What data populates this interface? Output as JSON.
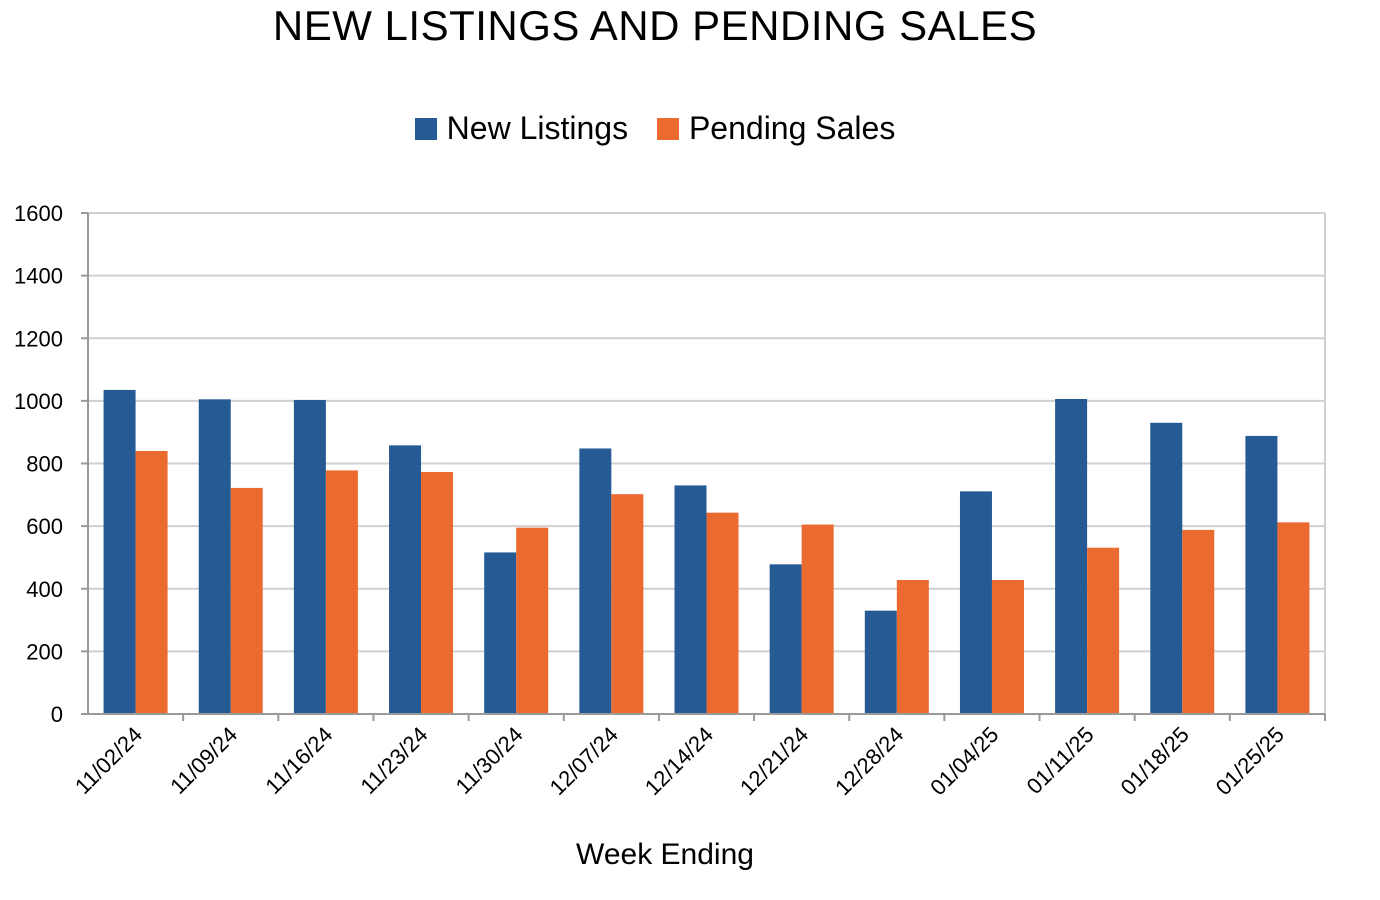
{
  "colors": {
    "new_listings": "#265A94",
    "pending_sales": "#EB6A2F",
    "grid": "#d0d0d0",
    "axis": "#999999"
  },
  "chart_data": {
    "type": "bar",
    "title": "NEW LISTINGS AND PENDING SALES",
    "xlabel": "Week Ending",
    "ylabel": "",
    "ylim": [
      0,
      1600
    ],
    "yticks": [
      0,
      200,
      400,
      600,
      800,
      1000,
      1200,
      1400,
      1600
    ],
    "grid": true,
    "legend_position": "top-center",
    "categories": [
      "11/02/24",
      "11/09/24",
      "11/16/24",
      "11/23/24",
      "11/30/24",
      "12/07/24",
      "12/14/24",
      "12/21/24",
      "12/28/24",
      "01/04/25",
      "01/11/25",
      "01/18/25",
      "01/25/25"
    ],
    "series": [
      {
        "name": "New Listings",
        "values": [
          1035,
          1005,
          1003,
          858,
          516,
          848,
          730,
          478,
          330,
          711,
          1006,
          930,
          888
        ]
      },
      {
        "name": "Pending Sales",
        "values": [
          840,
          722,
          778,
          773,
          595,
          702,
          643,
          605,
          428,
          428,
          531,
          588,
          612
        ]
      }
    ]
  }
}
